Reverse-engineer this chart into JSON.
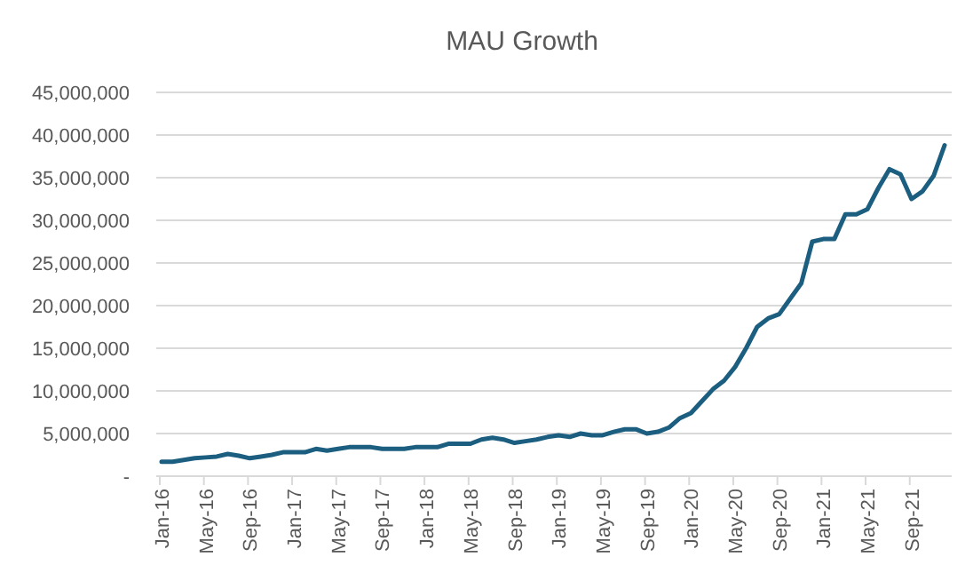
{
  "chart_data": {
    "type": "line",
    "title": "MAU Growth",
    "categories": [
      "Jan-16",
      null,
      null,
      null,
      "May-16",
      null,
      null,
      null,
      "Sep-16",
      null,
      null,
      null,
      "Jan-17",
      null,
      null,
      null,
      "May-17",
      null,
      null,
      null,
      "Sep-17",
      null,
      null,
      null,
      "Jan-18",
      null,
      null,
      null,
      "May-18",
      null,
      null,
      null,
      "Sep-18",
      null,
      null,
      null,
      "Jan-19",
      null,
      null,
      null,
      "May-19",
      null,
      null,
      null,
      "Sep-19",
      null,
      null,
      null,
      "Jan-20",
      null,
      null,
      null,
      "May-20",
      null,
      null,
      null,
      "Sep-20",
      null,
      null,
      null,
      "Jan-21",
      null,
      null,
      null,
      "May-21",
      null,
      null,
      null,
      "Sep-21",
      null,
      null,
      null
    ],
    "series": [
      {
        "color": "#1b5e80",
        "values": [
          1700000,
          1700000,
          1900000,
          2100000,
          2200000,
          2300000,
          2600000,
          2400000,
          2100000,
          2300000,
          2500000,
          2800000,
          2800000,
          2800000,
          3200000,
          3000000,
          3200000,
          3400000,
          3400000,
          3400000,
          3200000,
          3200000,
          3200000,
          3400000,
          3400000,
          3400000,
          3800000,
          3800000,
          3800000,
          4300000,
          4500000,
          4300000,
          3900000,
          4100000,
          4300000,
          4600000,
          4800000,
          4600000,
          5000000,
          4800000,
          4800000,
          5200000,
          5500000,
          5500000,
          5000000,
          5200000,
          5700000,
          6800000,
          7400000,
          8800000,
          10200000,
          11200000,
          12800000,
          15000000,
          17500000,
          18500000,
          19000000,
          20800000,
          22600000,
          27500000,
          27800000,
          27800000,
          30700000,
          30700000,
          31300000,
          33800000,
          36000000,
          35400000,
          32500000,
          33400000,
          35200000,
          38800000
        ]
      }
    ],
    "ylim": [
      0,
      45000000
    ],
    "yticks": [
      {
        "value": 0,
        "label": "-"
      },
      {
        "value": 5000000,
        "label": "5,000,000"
      },
      {
        "value": 10000000,
        "label": "10,000,000"
      },
      {
        "value": 15000000,
        "label": "15,000,000"
      },
      {
        "value": 20000000,
        "label": "20,000,000"
      },
      {
        "value": 25000000,
        "label": "25,000,000"
      },
      {
        "value": 30000000,
        "label": "30,000,000"
      },
      {
        "value": 35000000,
        "label": "35,000,000"
      },
      {
        "value": 40000000,
        "label": "40,000,000"
      },
      {
        "value": 45000000,
        "label": "45,000,000"
      }
    ],
    "grid": "y",
    "marker": "none",
    "line_style": "solid"
  }
}
